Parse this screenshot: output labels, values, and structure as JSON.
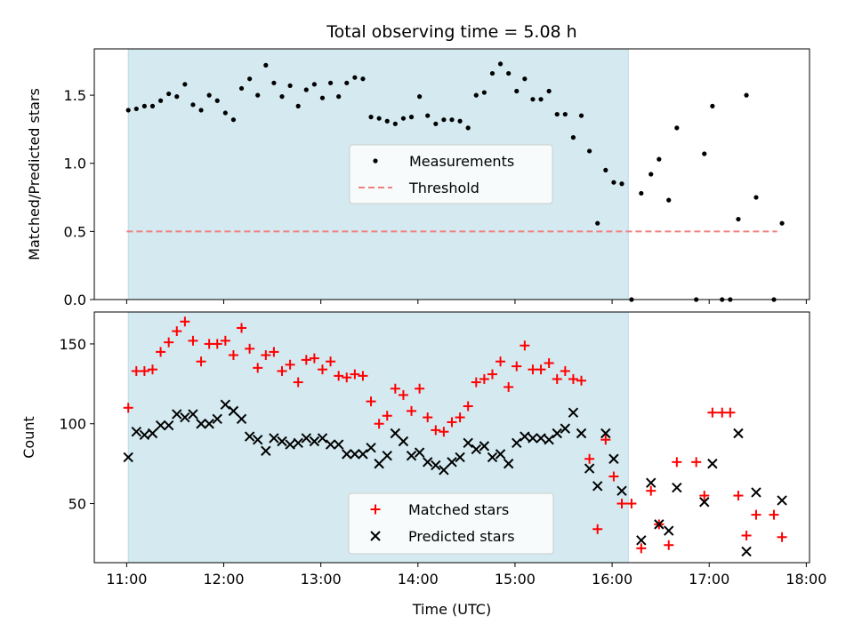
{
  "chart_data": [
    {
      "type": "scatter",
      "title": "Total observing time = 5.08 h",
      "xlabel": "",
      "ylabel": "Matched/Predicted stars",
      "xlim": [
        "10:40",
        "18:02"
      ],
      "ylim": [
        0,
        1.84
      ],
      "x_ticks": [
        "11:00",
        "12:00",
        "13:00",
        "14:00",
        "15:00",
        "16:00",
        "17:00",
        "18:00"
      ],
      "y_ticks": [
        "0.0",
        "0.5",
        "1.0",
        "1.5"
      ],
      "shaded_interval": [
        "11:01",
        "16:10"
      ],
      "shaded_color": "#d4eaf0",
      "legend": {
        "placement": "center",
        "entries": [
          "Measurements",
          "Threshold"
        ]
      },
      "series": [
        {
          "name": "Measurements",
          "marker": "dot",
          "color": "#000000",
          "points": [
            [
              "11:01",
              1.39
            ],
            [
              "11:06",
              1.4
            ],
            [
              "11:11",
              1.42
            ],
            [
              "11:16",
              1.42
            ],
            [
              "11:21",
              1.46
            ],
            [
              "11:26",
              1.51
            ],
            [
              "11:31",
              1.49
            ],
            [
              "11:36",
              1.58
            ],
            [
              "11:41",
              1.43
            ],
            [
              "11:46",
              1.39
            ],
            [
              "11:51",
              1.5
            ],
            [
              "11:56",
              1.46
            ],
            [
              "12:01",
              1.37
            ],
            [
              "12:06",
              1.32
            ],
            [
              "12:11",
              1.55
            ],
            [
              "12:16",
              1.62
            ],
            [
              "12:21",
              1.5
            ],
            [
              "12:26",
              1.72
            ],
            [
              "12:31",
              1.59
            ],
            [
              "12:36",
              1.49
            ],
            [
              "12:41",
              1.57
            ],
            [
              "12:46",
              1.42
            ],
            [
              "12:51",
              1.54
            ],
            [
              "12:56",
              1.58
            ],
            [
              "13:01",
              1.48
            ],
            [
              "13:06",
              1.59
            ],
            [
              "13:11",
              1.49
            ],
            [
              "13:16",
              1.59
            ],
            [
              "13:21",
              1.63
            ],
            [
              "13:26",
              1.62
            ],
            [
              "13:31",
              1.34
            ],
            [
              "13:36",
              1.33
            ],
            [
              "13:41",
              1.31
            ],
            [
              "13:46",
              1.29
            ],
            [
              "13:51",
              1.33
            ],
            [
              "13:56",
              1.34
            ],
            [
              "14:01",
              1.49
            ],
            [
              "14:06",
              1.35
            ],
            [
              "14:11",
              1.29
            ],
            [
              "14:16",
              1.32
            ],
            [
              "14:21",
              1.32
            ],
            [
              "14:26",
              1.31
            ],
            [
              "14:31",
              1.26
            ],
            [
              "14:36",
              1.5
            ],
            [
              "14:41",
              1.52
            ],
            [
              "14:46",
              1.66
            ],
            [
              "14:51",
              1.73
            ],
            [
              "14:56",
              1.66
            ],
            [
              "15:01",
              1.53
            ],
            [
              "15:06",
              1.62
            ],
            [
              "15:11",
              1.47
            ],
            [
              "15:16",
              1.47
            ],
            [
              "15:21",
              1.53
            ],
            [
              "15:26",
              1.36
            ],
            [
              "15:31",
              1.36
            ],
            [
              "15:36",
              1.19
            ],
            [
              "15:41",
              1.35
            ],
            [
              "15:46",
              1.09
            ],
            [
              "15:51",
              0.56
            ],
            [
              "15:56",
              0.95
            ],
            [
              "16:01",
              0.86
            ],
            [
              "16:06",
              0.85
            ],
            [
              "16:12",
              0.0
            ],
            [
              "16:18",
              0.78
            ],
            [
              "16:24",
              0.92
            ],
            [
              "16:29",
              1.03
            ],
            [
              "16:35",
              0.73
            ],
            [
              "16:40",
              1.26
            ],
            [
              "16:52",
              0.0
            ],
            [
              "16:57",
              1.07
            ],
            [
              "17:02",
              1.42
            ],
            [
              "17:08",
              0.0
            ],
            [
              "17:13",
              0.0
            ],
            [
              "17:18",
              0.59
            ],
            [
              "17:23",
              1.5
            ],
            [
              "17:29",
              0.75
            ],
            [
              "17:40",
              0.0
            ],
            [
              "17:45",
              0.56
            ]
          ]
        },
        {
          "name": "Threshold",
          "style": "dashed",
          "color": "#f08080",
          "x": [
            "11:00",
            "17:42"
          ],
          "y": [
            0.5,
            0.5
          ]
        }
      ]
    },
    {
      "type": "scatter",
      "title": "",
      "xlabel": "Time (UTC)",
      "ylabel": "Count",
      "xlim": [
        "10:40",
        "18:02"
      ],
      "ylim": [
        13,
        170
      ],
      "x_ticks": [
        "11:00",
        "12:00",
        "13:00",
        "14:00",
        "15:00",
        "16:00",
        "17:00",
        "18:00"
      ],
      "y_ticks": [
        "50",
        "100",
        "150"
      ],
      "shaded_interval": [
        "11:01",
        "16:10"
      ],
      "shaded_color": "#d4eaf0",
      "legend": {
        "placement": "lower center",
        "entries": [
          "Matched stars",
          "Predicted stars"
        ]
      },
      "series": [
        {
          "name": "Matched stars",
          "marker": "plus",
          "color": "#ff0000",
          "points": [
            [
              "11:01",
              110
            ],
            [
              "11:06",
              133
            ],
            [
              "11:11",
              133
            ],
            [
              "11:16",
              134
            ],
            [
              "11:21",
              145
            ],
            [
              "11:26",
              151
            ],
            [
              "11:31",
              158
            ],
            [
              "11:36",
              164
            ],
            [
              "11:41",
              152
            ],
            [
              "11:46",
              139
            ],
            [
              "11:51",
              150
            ],
            [
              "11:56",
              150
            ],
            [
              "12:01",
              152
            ],
            [
              "12:06",
              143
            ],
            [
              "12:11",
              160
            ],
            [
              "12:16",
              147
            ],
            [
              "12:21",
              135
            ],
            [
              "12:26",
              143
            ],
            [
              "12:31",
              145
            ],
            [
              "12:36",
              133
            ],
            [
              "12:41",
              137
            ],
            [
              "12:46",
              126
            ],
            [
              "12:51",
              140
            ],
            [
              "12:56",
              141
            ],
            [
              "13:01",
              134
            ],
            [
              "13:06",
              139
            ],
            [
              "13:11",
              130
            ],
            [
              "13:16",
              129
            ],
            [
              "13:21",
              131
            ],
            [
              "13:26",
              130
            ],
            [
              "13:31",
              114
            ],
            [
              "13:36",
              100
            ],
            [
              "13:41",
              105
            ],
            [
              "13:46",
              122
            ],
            [
              "13:51",
              118
            ],
            [
              "13:56",
              108
            ],
            [
              "14:01",
              122
            ],
            [
              "14:06",
              104
            ],
            [
              "14:11",
              96
            ],
            [
              "14:16",
              95
            ],
            [
              "14:21",
              101
            ],
            [
              "14:26",
              104
            ],
            [
              "14:31",
              111
            ],
            [
              "14:36",
              126
            ],
            [
              "14:41",
              128
            ],
            [
              "14:46",
              131
            ],
            [
              "14:51",
              139
            ],
            [
              "14:56",
              123
            ],
            [
              "15:01",
              136
            ],
            [
              "15:06",
              149
            ],
            [
              "15:11",
              134
            ],
            [
              "15:16",
              134
            ],
            [
              "15:21",
              138
            ],
            [
              "15:26",
              128
            ],
            [
              "15:31",
              133
            ],
            [
              "15:36",
              128
            ],
            [
              "15:41",
              127
            ],
            [
              "15:46",
              78
            ],
            [
              "15:51",
              34
            ],
            [
              "15:56",
              90
            ],
            [
              "16:01",
              67
            ],
            [
              "16:06",
              50
            ],
            [
              "16:12",
              50
            ],
            [
              "16:18",
              22
            ],
            [
              "16:24",
              58
            ],
            [
              "16:29",
              37
            ],
            [
              "16:35",
              24
            ],
            [
              "16:40",
              76
            ],
            [
              "16:52",
              76
            ],
            [
              "16:57",
              55
            ],
            [
              "17:02",
              107
            ],
            [
              "17:08",
              107
            ],
            [
              "17:13",
              107
            ],
            [
              "17:18",
              55
            ],
            [
              "17:23",
              30
            ],
            [
              "17:29",
              43
            ],
            [
              "17:40",
              43
            ],
            [
              "17:45",
              29
            ]
          ]
        },
        {
          "name": "Predicted stars",
          "marker": "x",
          "color": "#000000",
          "points": [
            [
              "11:01",
              79
            ],
            [
              "11:06",
              95
            ],
            [
              "11:11",
              93
            ],
            [
              "11:16",
              94
            ],
            [
              "11:21",
              99
            ],
            [
              "11:26",
              99
            ],
            [
              "11:31",
              106
            ],
            [
              "11:36",
              104
            ],
            [
              "11:41",
              106
            ],
            [
              "11:46",
              100
            ],
            [
              "11:51",
              100
            ],
            [
              "11:56",
              103
            ],
            [
              "12:01",
              112
            ],
            [
              "12:06",
              108
            ],
            [
              "12:11",
              103
            ],
            [
              "12:16",
              92
            ],
            [
              "12:21",
              90
            ],
            [
              "12:26",
              83
            ],
            [
              "12:31",
              91
            ],
            [
              "12:36",
              89
            ],
            [
              "12:41",
              87
            ],
            [
              "12:46",
              88
            ],
            [
              "12:51",
              91
            ],
            [
              "12:56",
              89
            ],
            [
              "13:01",
              91
            ],
            [
              "13:06",
              87
            ],
            [
              "13:11",
              87
            ],
            [
              "13:16",
              81
            ],
            [
              "13:21",
              81
            ],
            [
              "13:26",
              81
            ],
            [
              "13:31",
              85
            ],
            [
              "13:36",
              75
            ],
            [
              "13:41",
              80
            ],
            [
              "13:46",
              94
            ],
            [
              "13:51",
              89
            ],
            [
              "13:56",
              80
            ],
            [
              "14:01",
              82
            ],
            [
              "14:06",
              76
            ],
            [
              "14:11",
              74
            ],
            [
              "14:16",
              71
            ],
            [
              "14:21",
              76
            ],
            [
              "14:26",
              79
            ],
            [
              "14:31",
              88
            ],
            [
              "14:36",
              84
            ],
            [
              "14:41",
              86
            ],
            [
              "14:46",
              79
            ],
            [
              "14:51",
              81
            ],
            [
              "14:56",
              75
            ],
            [
              "15:01",
              88
            ],
            [
              "15:06",
              92
            ],
            [
              "15:11",
              91
            ],
            [
              "15:16",
              91
            ],
            [
              "15:21",
              90
            ],
            [
              "15:26",
              94
            ],
            [
              "15:31",
              97
            ],
            [
              "15:36",
              107
            ],
            [
              "15:41",
              94
            ],
            [
              "15:46",
              72
            ],
            [
              "15:51",
              61
            ],
            [
              "15:56",
              94
            ],
            [
              "16:01",
              78
            ],
            [
              "16:06",
              58
            ],
            [
              "16:18",
              27
            ],
            [
              "16:24",
              63
            ],
            [
              "16:29",
              37
            ],
            [
              "16:35",
              33
            ],
            [
              "16:40",
              60
            ],
            [
              "16:57",
              51
            ],
            [
              "17:02",
              75
            ],
            [
              "17:18",
              94
            ],
            [
              "17:23",
              20
            ],
            [
              "17:29",
              57
            ],
            [
              "17:45",
              52
            ]
          ]
        }
      ]
    }
  ]
}
